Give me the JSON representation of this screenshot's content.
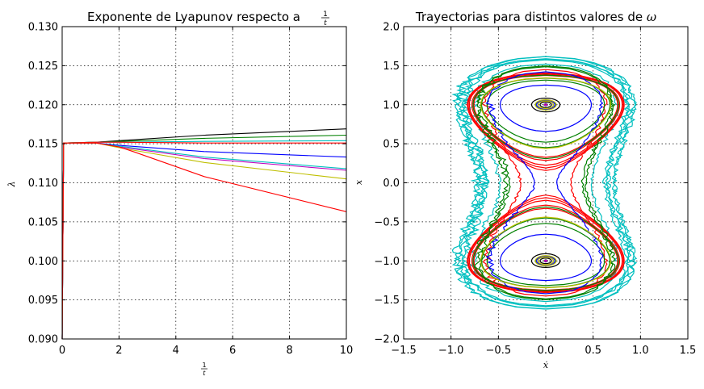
{
  "chart_data": [
    {
      "type": "line",
      "title": "Exponente de Lyapunov respecto a",
      "title_math": {
        "num": "1",
        "den": "t"
      },
      "xlabel_math": {
        "num": "1",
        "den": "t"
      },
      "ylabel": "λ",
      "xlim": [
        0,
        10
      ],
      "ylim": [
        0.09,
        0.13
      ],
      "grid": true,
      "xticks": [
        0,
        2,
        4,
        6,
        8,
        10
      ],
      "xtick_labels": [
        "0",
        "2",
        "4",
        "6",
        "8",
        "10"
      ],
      "yticks": [
        0.09,
        0.095,
        0.1,
        0.105,
        0.11,
        0.115,
        0.12,
        0.125,
        0.13
      ],
      "ytick_labels": [
        "0.090",
        "0.095",
        "0.100",
        "0.105",
        "0.110",
        "0.115",
        "0.120",
        "0.125",
        "0.130"
      ],
      "series": [
        {
          "color": "#000000",
          "points": [
            [
              0,
              0.09
            ],
            [
              0.05,
              0.1151
            ],
            [
              1.2,
              0.1152
            ],
            [
              2,
              0.1154
            ],
            [
              5,
              0.1161
            ],
            [
              10,
              0.1169
            ]
          ]
        },
        {
          "color": "#008000",
          "points": [
            [
              0,
              0.09
            ],
            [
              0.05,
              0.1151
            ],
            [
              1.2,
              0.1152
            ],
            [
              2,
              0.1153
            ],
            [
              5,
              0.1157
            ],
            [
              10,
              0.1161
            ]
          ]
        },
        {
          "color": "#00bfbf",
          "points": [
            [
              0,
              0.09
            ],
            [
              0.05,
              0.1151
            ],
            [
              1.2,
              0.1152
            ],
            [
              2,
              0.1152
            ],
            [
              5,
              0.1153
            ],
            [
              10,
              0.1154
            ]
          ]
        },
        {
          "color": "#ff0000",
          "points": [
            [
              0,
              0.09
            ],
            [
              0.05,
              0.1151
            ],
            [
              1.2,
              0.1152
            ],
            [
              2,
              0.1152
            ],
            [
              5,
              0.1151
            ],
            [
              10,
              0.1151
            ]
          ]
        },
        {
          "color": "#0000ff",
          "points": [
            [
              0,
              0.09
            ],
            [
              0.05,
              0.1151
            ],
            [
              1.2,
              0.1151
            ],
            [
              2,
              0.1148
            ],
            [
              5,
              0.114
            ],
            [
              10,
              0.1133
            ]
          ]
        },
        {
          "color": "#00bfbf",
          "points": [
            [
              0,
              0.09
            ],
            [
              0.05,
              0.1151
            ],
            [
              1.2,
              0.1151
            ],
            [
              2,
              0.1147
            ],
            [
              5,
              0.1133
            ],
            [
              10,
              0.1118
            ]
          ]
        },
        {
          "color": "#bf00bf",
          "points": [
            [
              0,
              0.09
            ],
            [
              0.05,
              0.1151
            ],
            [
              1.2,
              0.1151
            ],
            [
              2,
              0.1146
            ],
            [
              5,
              0.1131
            ],
            [
              10,
              0.1116
            ]
          ]
        },
        {
          "color": "#bfbf00",
          "points": [
            [
              0,
              0.09
            ],
            [
              0.05,
              0.1151
            ],
            [
              1.2,
              0.1151
            ],
            [
              2,
              0.1145
            ],
            [
              5,
              0.1126
            ],
            [
              10,
              0.1105
            ]
          ]
        },
        {
          "color": "#ff0000",
          "points": [
            [
              0,
              0.09
            ],
            [
              0.05,
              0.1151
            ],
            [
              1.2,
              0.1151
            ],
            [
              2,
              0.1146
            ],
            [
              2.5,
              0.114
            ],
            [
              5,
              0.1108
            ],
            [
              10,
              0.1063
            ]
          ]
        }
      ]
    },
    {
      "type": "line",
      "title": "Trayectorias para distintos valores de",
      "title_math": "ω",
      "xlabel": "ẋ",
      "ylabel": "x",
      "xlim": [
        -1.5,
        1.5
      ],
      "ylim": [
        -2.0,
        2.0
      ],
      "grid": true,
      "xticks": [
        -1.5,
        -1.0,
        -0.5,
        0.0,
        0.5,
        1.0,
        1.5
      ],
      "xtick_labels": [
        "−1.5",
        "−1.0",
        "−0.5",
        "0.0",
        "0.5",
        "1.0",
        "1.5"
      ],
      "yticks": [
        -2.0,
        -1.5,
        -1.0,
        -0.5,
        0.0,
        0.5,
        1.0,
        1.5,
        2.0
      ],
      "ytick_labels": [
        "−2.0",
        "−1.5",
        "−1.0",
        "−0.5",
        "0.0",
        "0.5",
        "1.0",
        "1.5",
        "2.0"
      ],
      "series": [
        {
          "color": "#00bfbf",
          "amplitude": [
            1.52,
            1.62
          ],
          "loops": 6
        },
        {
          "color": "#ff0000",
          "amplitude": [
            1.35,
            1.52
          ],
          "loops": 6
        },
        {
          "color": "#008000",
          "amplitude": [
            0.9,
            1.5
          ],
          "loops": 7
        },
        {
          "color": "#0000ff",
          "amplitude": [
            0.3,
            1.45
          ],
          "loops": 6
        },
        {
          "color": "#000000",
          "amplitude": [
            0.5,
            1.4
          ],
          "loops": 6
        },
        {
          "color": "#bf00bf",
          "amplitude": [
            0.6,
            1.45
          ],
          "loops": 5
        },
        {
          "color": "#bfbf00",
          "amplitude": [
            0.7,
            1.35
          ],
          "loops": 3
        }
      ]
    }
  ]
}
